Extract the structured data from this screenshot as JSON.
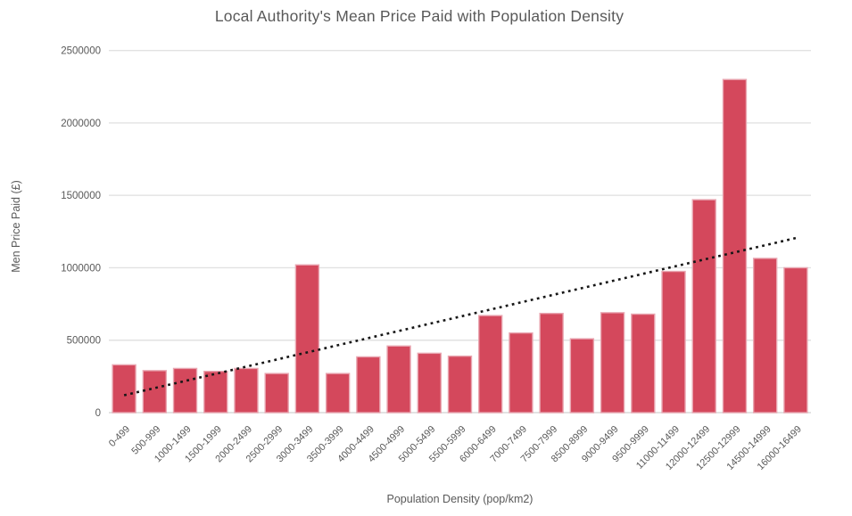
{
  "chart_data": {
    "type": "bar",
    "title": "Local Authority's Mean Price Paid with Population Density",
    "xlabel": "Population Density (pop/km2)",
    "ylabel": "Men Price Paid (£)",
    "categories": [
      "0-499",
      "500-999",
      "1000-1499",
      "1500-1999",
      "2000-2499",
      "2500-2999",
      "3000-3499",
      "3500-3999",
      "4000-4499",
      "4500-4999",
      "5000-5499",
      "5500-5999",
      "6000-6499",
      "7000-7499",
      "7500-7999",
      "8500-8999",
      "9000-9499",
      "9500-9999",
      "11000-11499",
      "12000-12499",
      "12500-12999",
      "14500-14999",
      "16000-16499"
    ],
    "values": [
      330000,
      290000,
      305000,
      285000,
      305000,
      270000,
      1020000,
      270000,
      385000,
      460000,
      410000,
      390000,
      670000,
      550000,
      685000,
      510000,
      690000,
      680000,
      975000,
      1470000,
      2300000,
      1065000,
      1000000
    ],
    "ylim": [
      0,
      2500000
    ],
    "ytick_step": 500000,
    "ytick_labels": [
      "0",
      "500000",
      "1000000",
      "1500000",
      "2000000",
      "2500000"
    ],
    "grid": true,
    "legend": "none",
    "trendline": {
      "style": "dotted",
      "start_value": 120000,
      "end_value": 1205000,
      "color": "#161616"
    },
    "colors": {
      "bar_fill": "#d4485c",
      "bar_border": "#e9a6b1",
      "gridline": "#e2e2e2",
      "axis_line": "#d9d9d9",
      "text": "#595959"
    }
  }
}
